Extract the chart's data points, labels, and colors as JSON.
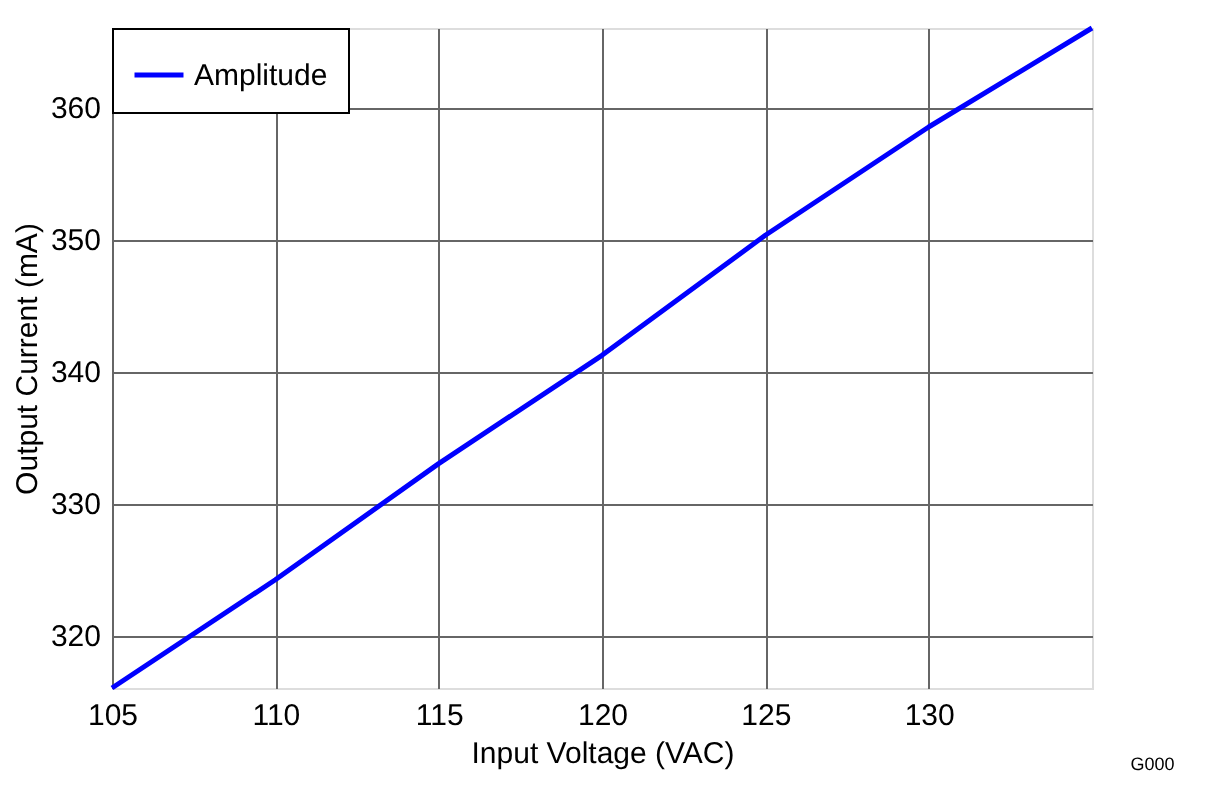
{
  "chart_data": {
    "type": "line",
    "xlabel": "Input Voltage (VAC)",
    "ylabel": "Output Current (mA)",
    "x": [
      105,
      110,
      115,
      120,
      125,
      130,
      135
    ],
    "series": [
      {
        "name": "Amplitude",
        "color": "#0000ff",
        "values": [
          316,
          324.2,
          333,
          341.2,
          350.3,
          358.5,
          366
        ]
      }
    ],
    "xlim": [
      105,
      135
    ],
    "ylim": [
      316,
      366
    ],
    "xticks": [
      105,
      110,
      115,
      120,
      125,
      130
    ],
    "yticks": [
      320,
      330,
      340,
      350,
      360
    ],
    "grid": true,
    "legend": "top left",
    "annotations": [
      "G000"
    ]
  }
}
